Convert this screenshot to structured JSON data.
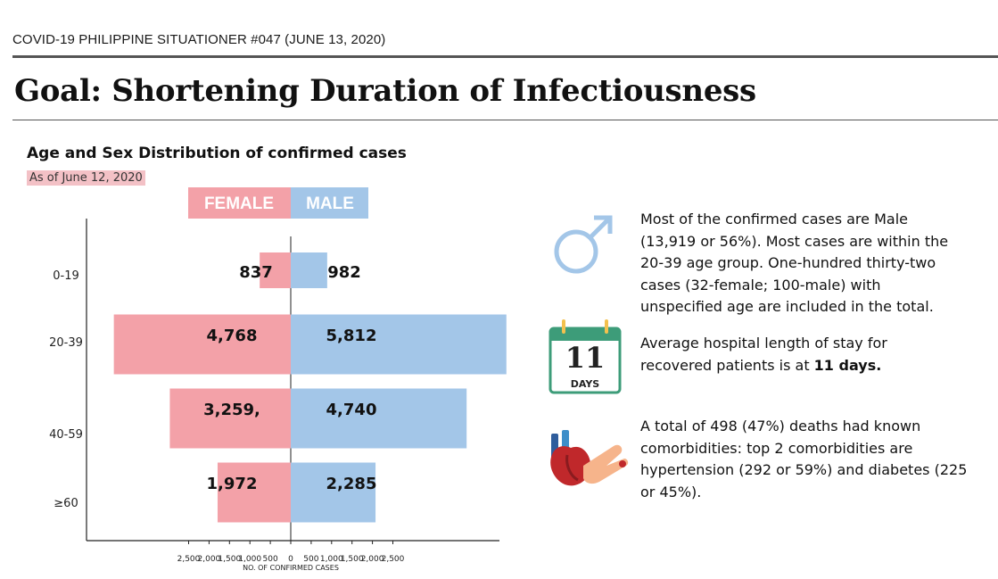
{
  "header": {
    "label": "COVID-19 PHILIPPINE SITUATIONER #047 (JUNE 13, 2020)",
    "title": "Goal: Shortening Duration of Infectiousness"
  },
  "chart_data": {
    "type": "bar",
    "orientation": "horizontal-pyramid",
    "title": "Age and Sex Distribution of confirmed cases",
    "subtitle": "As of June 12, 2020",
    "xlabel": "NO. OF CONFIRMED CASES",
    "categories": [
      "0-19",
      "20-39",
      "40-59",
      "≥60"
    ],
    "series": [
      {
        "name": "FEMALE",
        "values": [
          837,
          4768,
          3259,
          1972
        ],
        "labels": [
          "837",
          "4,768",
          "3,259,",
          "1,972"
        ],
        "color": "#f3a1a8"
      },
      {
        "name": "MALE",
        "values": [
          982,
          5812,
          4740,
          2285
        ],
        "labels": [
          "982",
          "5,812",
          "4,740",
          "2,285"
        ],
        "color": "#a3c6e8"
      }
    ],
    "xticks": [
      "2,500",
      "2,000",
      "1,500",
      "1,000",
      "500",
      "0",
      "500",
      "1,000",
      "1,500",
      "2,000",
      "2,500"
    ],
    "xlim": [
      -2500,
      2500
    ]
  },
  "sidebar": {
    "male_info": "Most of the confirmed cases are Male (13,919 or 56%). Most cases are within the 20-39 age group. One-hundred thirty-two cases (32-female; 100-male) with unspecified age are included in the total.",
    "calendar_number": "11",
    "calendar_unit": "DAYS",
    "stay_prefix": "Average hospital length of stay for recovered patients is at ",
    "stay_bold": "11 days.",
    "comorb_info": "A total of 498 (47%) deaths had known comorbidities: top 2 comorbidities are hypertension (292 or 59%) and diabetes (225 or 45%).",
    "colors": {
      "male": "#a3c6e8",
      "female": "#f3a1a8",
      "calendar": "#3d9c79",
      "heart": "#c0282b"
    }
  }
}
